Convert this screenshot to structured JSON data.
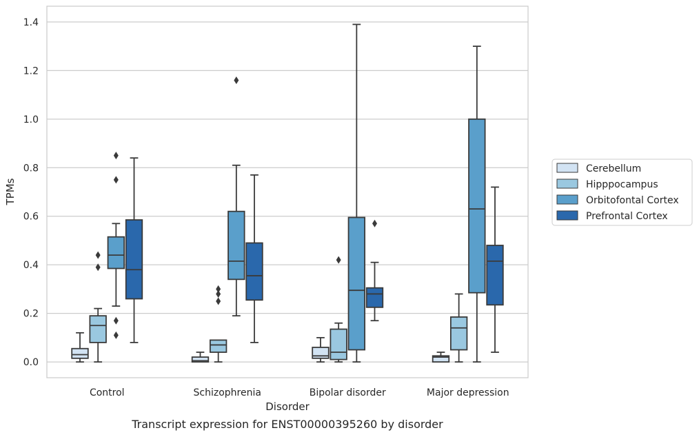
{
  "caption": "Transcript expression for ENST00000395260 by disorder",
  "chart_data": {
    "type": "box",
    "title": "",
    "xlabel": "Disorder",
    "ylabel": "TPMs",
    "ylim": [
      -0.065,
      1.465
    ],
    "yticks": [
      "0.0",
      "0.2",
      "0.4",
      "0.6",
      "0.8",
      "1.0",
      "1.2",
      "1.4"
    ],
    "grid": true,
    "legend_position": "right",
    "categories": [
      "Control",
      "Schizophrenia",
      "Bipolar disorder",
      "Major depression"
    ],
    "series": [
      {
        "name": "Cerebellum",
        "color": "#d2e3f3",
        "boxes": [
          {
            "whislo": 0.0,
            "q1": 0.015,
            "med": 0.03,
            "q3": 0.055,
            "whishi": 0.12,
            "fliers": []
          },
          {
            "whislo": 0.0,
            "q1": 0.0,
            "med": 0.005,
            "q3": 0.02,
            "whishi": 0.04,
            "fliers": []
          },
          {
            "whislo": 0.0,
            "q1": 0.015,
            "med": 0.025,
            "q3": 0.06,
            "whishi": 0.1,
            "fliers": []
          },
          {
            "whislo": 0.0,
            "q1": 0.0,
            "med": 0.02,
            "q3": 0.025,
            "whishi": 0.04,
            "fliers": []
          }
        ]
      },
      {
        "name": "Hipppocampus",
        "color": "#9ac8e0",
        "boxes": [
          {
            "whislo": 0.0,
            "q1": 0.08,
            "med": 0.15,
            "q3": 0.19,
            "whishi": 0.22,
            "fliers": [
              0.39,
              0.44
            ]
          },
          {
            "whislo": 0.0,
            "q1": 0.04,
            "med": 0.07,
            "q3": 0.09,
            "whishi": 0.09,
            "fliers": [
              0.25,
              0.28,
              0.3
            ]
          },
          {
            "whislo": 0.0,
            "q1": 0.01,
            "med": 0.04,
            "q3": 0.135,
            "whishi": 0.16,
            "fliers": [
              0.42
            ]
          },
          {
            "whislo": 0.0,
            "q1": 0.05,
            "med": 0.14,
            "q3": 0.185,
            "whishi": 0.28,
            "fliers": []
          }
        ]
      },
      {
        "name": "Orbitofontal Cortex",
        "color": "#5a9fcb",
        "boxes": [
          {
            "whislo": 0.23,
            "q1": 0.385,
            "med": 0.44,
            "q3": 0.515,
            "whishi": 0.57,
            "fliers": [
              0.11,
              0.17,
              0.75,
              0.85
            ]
          },
          {
            "whislo": 0.19,
            "q1": 0.34,
            "med": 0.415,
            "q3": 0.62,
            "whishi": 0.81,
            "fliers": [
              1.16
            ]
          },
          {
            "whislo": 0.0,
            "q1": 0.05,
            "med": 0.295,
            "q3": 0.595,
            "whishi": 1.39,
            "fliers": []
          },
          {
            "whislo": 0.0,
            "q1": 0.285,
            "med": 0.63,
            "q3": 1.0,
            "whishi": 1.3,
            "fliers": []
          }
        ]
      },
      {
        "name": "Prefrontal Cortex",
        "color": "#2a68ac",
        "boxes": [
          {
            "whislo": 0.08,
            "q1": 0.26,
            "med": 0.38,
            "q3": 0.585,
            "whishi": 0.84,
            "fliers": []
          },
          {
            "whislo": 0.08,
            "q1": 0.255,
            "med": 0.355,
            "q3": 0.49,
            "whishi": 0.77,
            "fliers": []
          },
          {
            "whislo": 0.17,
            "q1": 0.225,
            "med": 0.28,
            "q3": 0.305,
            "whishi": 0.41,
            "fliers": [
              0.57
            ]
          },
          {
            "whislo": 0.04,
            "q1": 0.235,
            "med": 0.415,
            "q3": 0.48,
            "whishi": 0.72,
            "fliers": []
          }
        ]
      }
    ]
  }
}
